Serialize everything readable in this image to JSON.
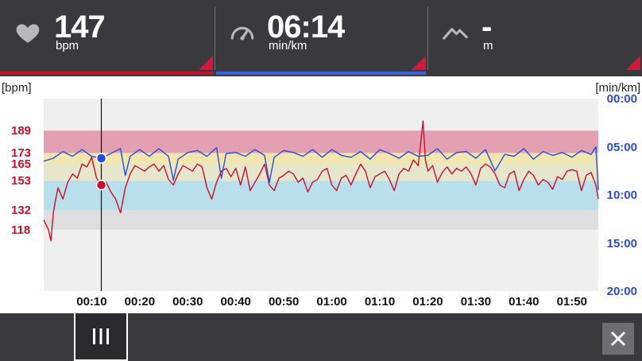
{
  "metrics": {
    "heart_rate": {
      "value": "147",
      "unit": "bpm",
      "icon": "heart-icon"
    },
    "pace": {
      "value": "06:14",
      "unit": "min/km",
      "icon": "speedometer-icon"
    },
    "elevation": {
      "value": "-",
      "unit": "m",
      "icon": "mountain-icon"
    }
  },
  "colors": {
    "bar_bg": "#3a3a3d",
    "heart_rate": "#c8102e",
    "pace": "#2b4bd6",
    "zone_red": "#e2a0b2",
    "zone_yellow": "#f1e7ae",
    "zone_light": "#e6e6cc",
    "zone_cyan": "#b9e0ea",
    "zone_gray": "#dedede",
    "plot_bg": "#efefef"
  },
  "chart_data": {
    "type": "line",
    "left_axis_label": "[bpm]",
    "right_axis_label": "[min/km]",
    "left_ticks": [
      "189",
      "173",
      "165",
      "153",
      "132",
      "118"
    ],
    "right_ticks": [
      "00:00",
      "05:00",
      "10:00",
      "15:00",
      "20:00"
    ],
    "x_ticks": [
      "00:10",
      "00:20",
      "00:30",
      "00:40",
      "00:50",
      "01:00",
      "01:10",
      "01:20",
      "01:30",
      "01:40",
      "01:50"
    ],
    "x_range_minutes": [
      0,
      115.5
    ],
    "cursor_minutes": 12,
    "hr_axis_range": [
      74,
      212
    ],
    "pace_axis_range_minutes": [
      0,
      20
    ],
    "hr_zones": [
      {
        "from": 118,
        "to": 132,
        "color": "#dedede"
      },
      {
        "from": 132,
        "to": 153,
        "color": "#b9e0ea"
      },
      {
        "from": 153,
        "to": 165,
        "color": "#e6e6cc"
      },
      {
        "from": 165,
        "to": 173,
        "color": "#f1e7ae"
      },
      {
        "from": 173,
        "to": 189,
        "color": "#e2a0b2"
      }
    ],
    "series": [
      {
        "name": "heart rate",
        "unit": "bpm",
        "color": "#c8102e",
        "x": [
          0,
          1,
          1.5,
          2,
          2.5,
          3,
          4,
          5,
          6,
          7,
          8,
          9,
          10,
          11,
          12,
          13,
          14,
          15,
          16,
          17,
          18,
          19,
          20,
          21,
          22,
          23,
          24,
          25,
          26,
          27,
          28,
          29,
          30,
          31,
          32,
          33,
          34,
          35,
          36,
          37,
          38,
          39,
          40,
          41,
          42,
          43,
          44,
          45,
          46,
          47,
          48,
          49,
          50,
          51,
          52,
          53,
          54,
          55,
          56,
          57,
          58,
          59,
          60,
          61,
          62,
          63,
          64,
          65,
          66,
          67,
          68,
          69,
          70,
          71,
          72,
          73,
          74,
          75,
          76,
          77,
          78,
          79,
          79.5,
          80,
          81,
          82,
          83,
          84,
          85,
          86,
          87,
          88,
          89,
          90,
          91,
          92,
          93,
          94,
          95,
          96,
          97,
          98,
          99,
          100,
          101,
          102,
          103,
          104,
          105,
          106,
          107,
          108,
          109,
          110,
          111,
          112,
          113,
          114,
          115,
          115.5
        ],
        "y": [
          125,
          118,
          110,
          130,
          140,
          148,
          140,
          152,
          158,
          155,
          165,
          163,
          170,
          155,
          150,
          152,
          145,
          140,
          130,
          148,
          158,
          164,
          162,
          160,
          163,
          165,
          160,
          164,
          154,
          150,
          158,
          164,
          162,
          160,
          165,
          163,
          148,
          140,
          152,
          160,
          162,
          156,
          162,
          150,
          163,
          146,
          152,
          158,
          165,
          150,
          146,
          155,
          157,
          160,
          158,
          152,
          155,
          145,
          152,
          154,
          160,
          162,
          150,
          146,
          155,
          157,
          150,
          158,
          165,
          160,
          148,
          156,
          158,
          160,
          154,
          146,
          158,
          162,
          160,
          168,
          164,
          196,
          168,
          160,
          164,
          152,
          159,
          163,
          158,
          162,
          160,
          163,
          158,
          150,
          162,
          165,
          163,
          158,
          150,
          148,
          158,
          160,
          146,
          154,
          160,
          157,
          150,
          154,
          152,
          147,
          156,
          154,
          160,
          161,
          160,
          146,
          157,
          159,
          150,
          140
        ]
      },
      {
        "name": "pace",
        "unit": "min/km",
        "color": "#2b4bd6",
        "x": [
          0,
          2,
          4,
          6,
          8,
          10,
          12,
          14,
          16,
          17,
          18,
          20,
          22,
          24,
          26,
          27,
          28,
          30,
          32,
          34,
          36,
          37,
          38,
          40,
          42,
          44,
          46,
          47,
          48,
          50,
          52,
          54,
          56,
          58,
          60,
          62,
          64,
          66,
          68,
          70,
          72,
          74,
          76,
          78,
          80,
          82,
          84,
          86,
          88,
          90,
          92,
          94,
          96,
          98,
          100,
          102,
          104,
          106,
          108,
          110,
          112,
          114,
          115,
          115.5
        ],
        "y": [
          6.5,
          6.2,
          5.5,
          6.0,
          5.3,
          6.0,
          6.2,
          5.7,
          5.2,
          8.0,
          6.0,
          5.3,
          6.0,
          5.2,
          6.0,
          8.5,
          6.3,
          5.6,
          5.4,
          6.0,
          5.1,
          8.3,
          5.7,
          5.6,
          6.0,
          5.3,
          5.9,
          8.7,
          6.1,
          5.4,
          5.6,
          6.0,
          5.3,
          6.1,
          5.3,
          5.9,
          6.1,
          5.5,
          6.3,
          5.3,
          5.7,
          6.2,
          5.5,
          6.0,
          5.9,
          5.2,
          6.3,
          5.6,
          5.5,
          6.2,
          5.3,
          7.5,
          5.8,
          6.0,
          5.2,
          6.3,
          5.5,
          5.9,
          5.6,
          6.1,
          5.4,
          5.8,
          5.0,
          9.5
        ]
      }
    ]
  }
}
